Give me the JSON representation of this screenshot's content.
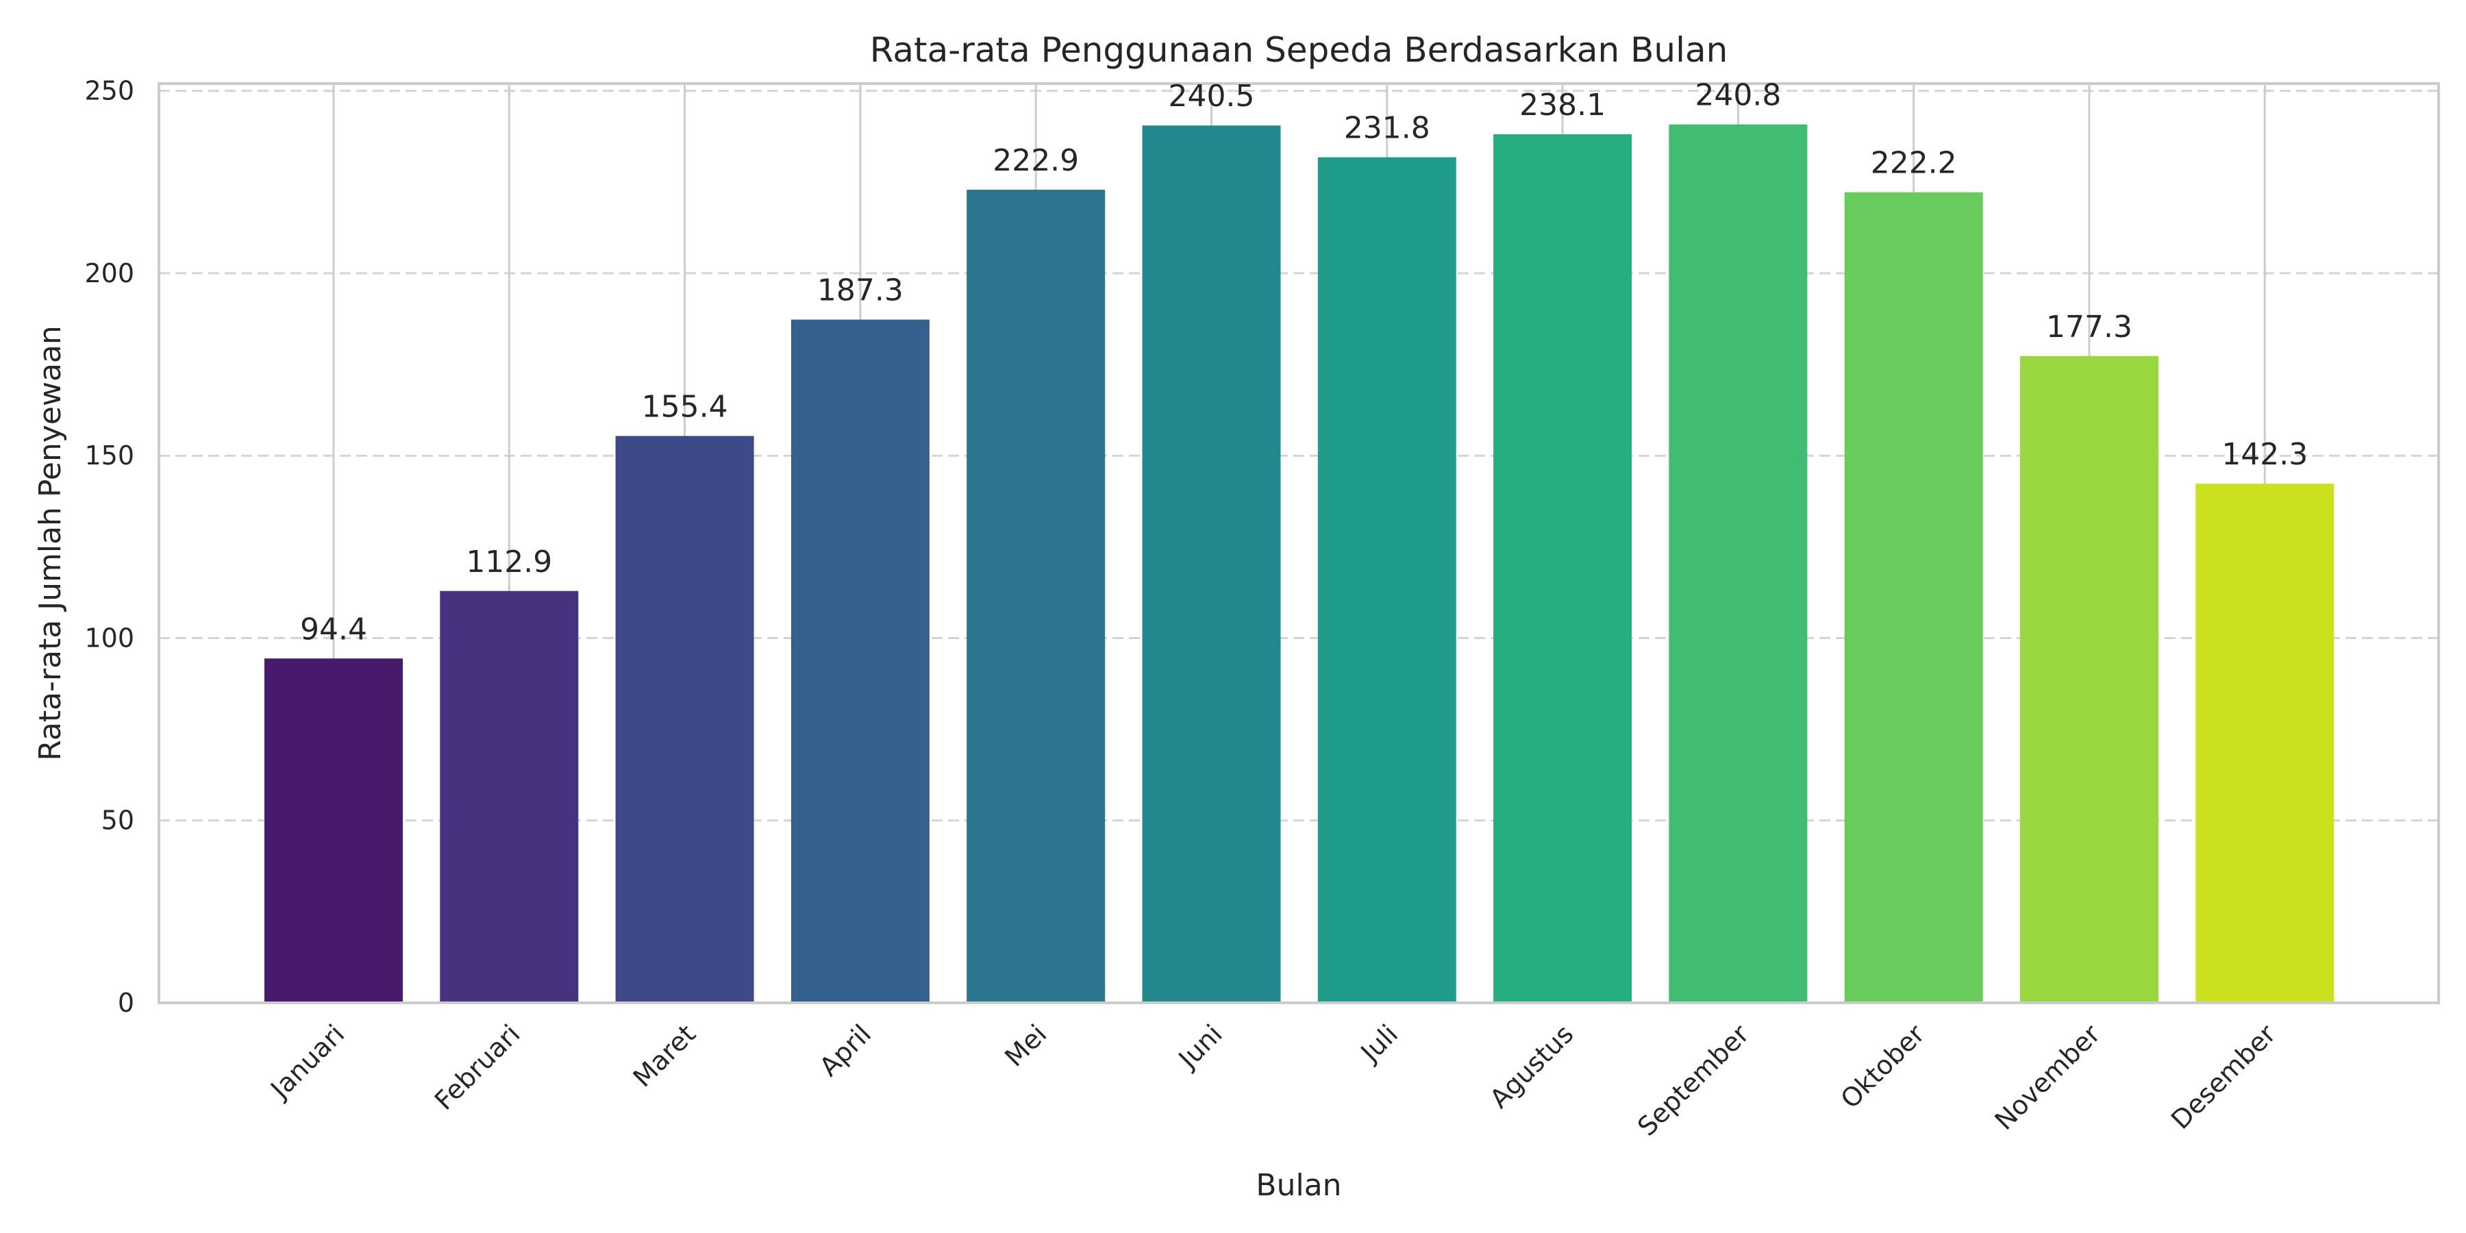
{
  "chart_data": {
    "type": "bar",
    "title": "Rata-rata Penggunaan Sepeda Berdasarkan Bulan",
    "xlabel": "Bulan",
    "ylabel": "Rata-rata Jumlah Penyewaan",
    "categories": [
      "Januari",
      "Februari",
      "Maret",
      "April",
      "Mei",
      "Juni",
      "Juli",
      "Agustus",
      "September",
      "Oktober",
      "November",
      "Desember"
    ],
    "values": [
      94.4,
      112.9,
      155.4,
      187.3,
      222.9,
      240.5,
      231.8,
      238.1,
      240.8,
      222.2,
      177.3,
      142.3
    ],
    "value_labels": [
      "94.4",
      "112.9",
      "155.4",
      "187.3",
      "222.9",
      "240.5",
      "231.8",
      "238.1",
      "240.8",
      "222.2",
      "177.3",
      "142.3"
    ],
    "colors": [
      "#481a6c",
      "#46327e",
      "#3e4989",
      "#34618d",
      "#2b758e",
      "#23888e",
      "#1f9d8a",
      "#26ad81",
      "#40bd72",
      "#67cc5c",
      "#98d83e",
      "#cce11e"
    ],
    "ylim": [
      0,
      252
    ],
    "yticks": [
      0,
      50,
      100,
      150,
      200,
      250
    ],
    "ytick_labels": [
      "0",
      "50",
      "100",
      "150",
      "200",
      "250"
    ],
    "grid": true,
    "legend": "none"
  }
}
